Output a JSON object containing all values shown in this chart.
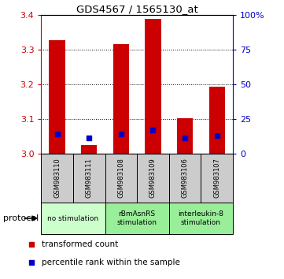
{
  "title": "GDS4567 / 1565130_at",
  "samples": [
    "GSM983110",
    "GSM983111",
    "GSM983108",
    "GSM983109",
    "GSM983106",
    "GSM983107"
  ],
  "red_values": [
    3.328,
    3.025,
    3.317,
    3.39,
    3.103,
    3.193
  ],
  "blue_values": [
    3.056,
    3.046,
    3.056,
    3.068,
    3.046,
    3.051
  ],
  "ymin": 3.0,
  "ymax": 3.4,
  "yticks_left": [
    3.0,
    3.1,
    3.2,
    3.3,
    3.4
  ],
  "yticks_right": [
    0,
    25,
    50,
    75,
    100
  ],
  "ytick_labels_right": [
    "0",
    "25",
    "50",
    "75",
    "100%"
  ],
  "bar_color": "#cc0000",
  "blue_color": "#0000cc",
  "group_infos": [
    [
      0,
      2,
      "no stimulation",
      "#ccffcc"
    ],
    [
      2,
      4,
      "rBmAsnRS\nstimulation",
      "#99ee99"
    ],
    [
      4,
      6,
      "interleukin-8\nstimulation",
      "#99ee99"
    ]
  ],
  "protocol_label": "protocol",
  "legend_red": "transformed count",
  "legend_blue": "percentile rank within the sample",
  "background_color": "#ffffff",
  "plot_bg": "#ffffff",
  "axis_color_left": "#cc0000",
  "axis_color_right": "#0000cc",
  "bar_width": 0.5,
  "sample_box_color": "#cccccc"
}
